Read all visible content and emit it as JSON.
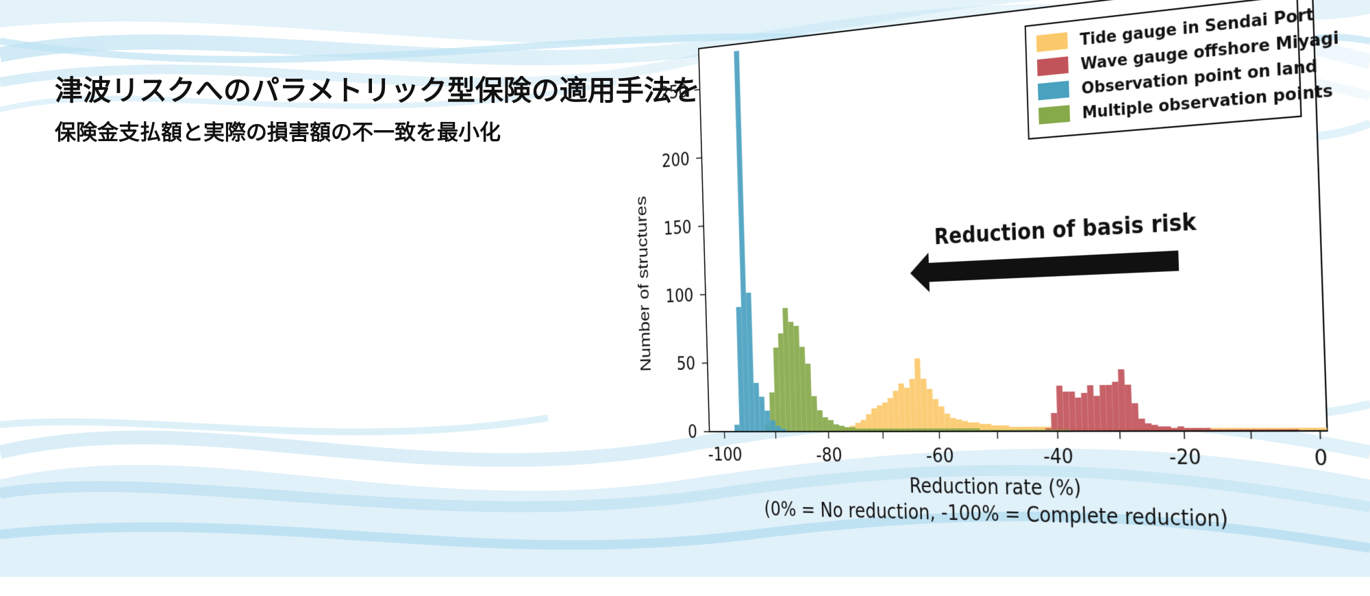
{
  "headline": "津波リスクへのパラメトリック型保険の適用手法を開発",
  "subheadline": "保険金支払額と実際の損害額の不一致を最小化",
  "chart_data": {
    "type": "histogram",
    "title": "",
    "xlabel": "Reduction rate (%)",
    "xlabel_sub": "(0% = No reduction, -100% = Complete reduction)",
    "ylabel": "Number of structures",
    "xlim": [
      -103,
      1
    ],
    "ylim": [
      0,
      280
    ],
    "xticks": [
      -100,
      -80,
      -60,
      -40,
      -20,
      0
    ],
    "yticks": [
      0,
      50,
      100,
      150,
      200,
      250
    ],
    "bin_width": 1,
    "grid": false,
    "legend_position": "top-right",
    "annotation": {
      "text": "Reduction of basis risk",
      "arrow": "pointing-left"
    },
    "series": [
      {
        "name": "Tide gauge in Sendai Port",
        "color": "#fbc96b",
        "bin_start": -80,
        "values": [
          0,
          1,
          2,
          3,
          4,
          6,
          8,
          12,
          16,
          18,
          20,
          23,
          28,
          33,
          30,
          36,
          50,
          36,
          29,
          22,
          17,
          12,
          9,
          8,
          7,
          6,
          6,
          5,
          5,
          4,
          4,
          4,
          3,
          3,
          3,
          3,
          3,
          3,
          3,
          2,
          2,
          2,
          2,
          2,
          2,
          2,
          2,
          2,
          2,
          2,
          2,
          2,
          2,
          2,
          2,
          2,
          2,
          2,
          2,
          2,
          2,
          2,
          2,
          2,
          2,
          2,
          2,
          2,
          2,
          2,
          2,
          2,
          2,
          2,
          2,
          2,
          2,
          2,
          2,
          2,
          2
        ]
      },
      {
        "name": "Wave gauge offshore Miyagi",
        "color": "#c1545a",
        "bin_start": -42,
        "values": [
          2,
          12,
          30,
          26,
          26,
          22,
          25,
          30,
          23,
          30,
          30,
          32,
          40,
          30,
          18,
          8,
          5,
          4,
          3,
          3,
          2,
          3,
          2,
          2,
          2,
          2,
          1,
          1,
          1,
          1,
          1,
          1,
          1,
          1,
          1,
          1,
          1,
          1,
          1,
          0,
          0,
          0
        ]
      },
      {
        "name": "Observation point on land",
        "color": "#4aa1c0",
        "bin_start": -98,
        "values": [
          5,
          90,
          275,
          100,
          35,
          25,
          15,
          8,
          4,
          2
        ]
      },
      {
        "name": "Multiple observation points",
        "color": "#86a94a",
        "bin_start": -92,
        "values": [
          5,
          28,
          60,
          70,
          88,
          78,
          75,
          60,
          48,
          25,
          15,
          10,
          8,
          5,
          4,
          3,
          3,
          2,
          2,
          2,
          2,
          2,
          2,
          2,
          2,
          2,
          2,
          2,
          2,
          2,
          2,
          2,
          2,
          2,
          2,
          2,
          2,
          2,
          2,
          1,
          1,
          1,
          1,
          1,
          1,
          1,
          1,
          1,
          1,
          1,
          1,
          1,
          1,
          1
        ]
      }
    ]
  }
}
